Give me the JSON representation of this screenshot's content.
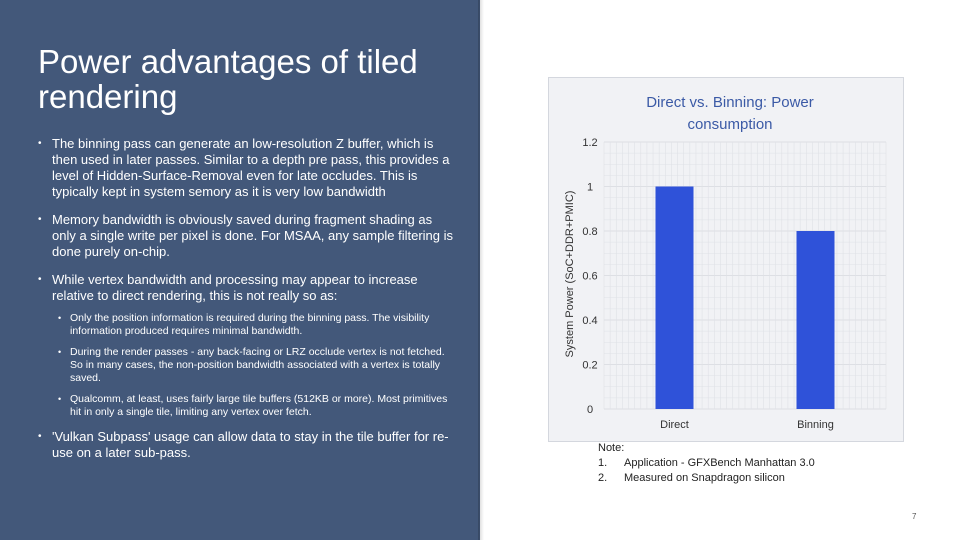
{
  "slide": {
    "title": "Power advantages of tiled rendering",
    "bullets": [
      "The binning pass can generate an low-resolution Z buffer, which is then used in later passes. Similar to a depth pre pass, this provides a level of Hidden-Surface-Removal even for late occludes. This is typically kept in system semory as it is very low bandwidth",
      "Memory bandwidth is obviously saved during fragment shading as only a single write per pixel is done. For MSAA, any sample filtering is done purely on-chip.",
      "While vertex bandwidth and processing may appear to increase relative to direct rendering, this is not really so as:"
    ],
    "sub_bullets": [
      "Only the position information is required during the binning pass. The visibility information produced requires minimal bandwidth.",
      "During the render passes - any back-facing or LRZ occlude vertex is not fetched. So in many cases, the non-position bandwidth associated with a vertex is totally saved.",
      "Qualcomm, at least, uses fairly large tile buffers (512KB or more). Most primitives hit in only a single tile, limiting any vertex over fetch."
    ],
    "last_bullet": "'Vulkan Subpass' usage can allow data to stay in the tile buffer for re-use on a later sub-pass.",
    "page_number": "7"
  },
  "chart_data": {
    "type": "bar",
    "title": "Direct vs. Binning: Power consumption",
    "categories": [
      "Direct",
      "Binning"
    ],
    "values": [
      1.0,
      0.8
    ],
    "ylabel": "System Power (SoC+DDR+PMIC)",
    "xlabel": "",
    "ylim": [
      0,
      1.2
    ],
    "yticks": [
      "0",
      "0.2",
      "0.4",
      "0.6",
      "0.8",
      "1",
      "1.2"
    ],
    "grid": true,
    "bar_color": "#2f52d9"
  },
  "note": {
    "heading": "Note:",
    "items": [
      {
        "num": "1.",
        "text": "Application - GFXBench Manhattan 3.0"
      },
      {
        "num": "2.",
        "text": "Measured on Snapdragon silicon"
      }
    ]
  }
}
